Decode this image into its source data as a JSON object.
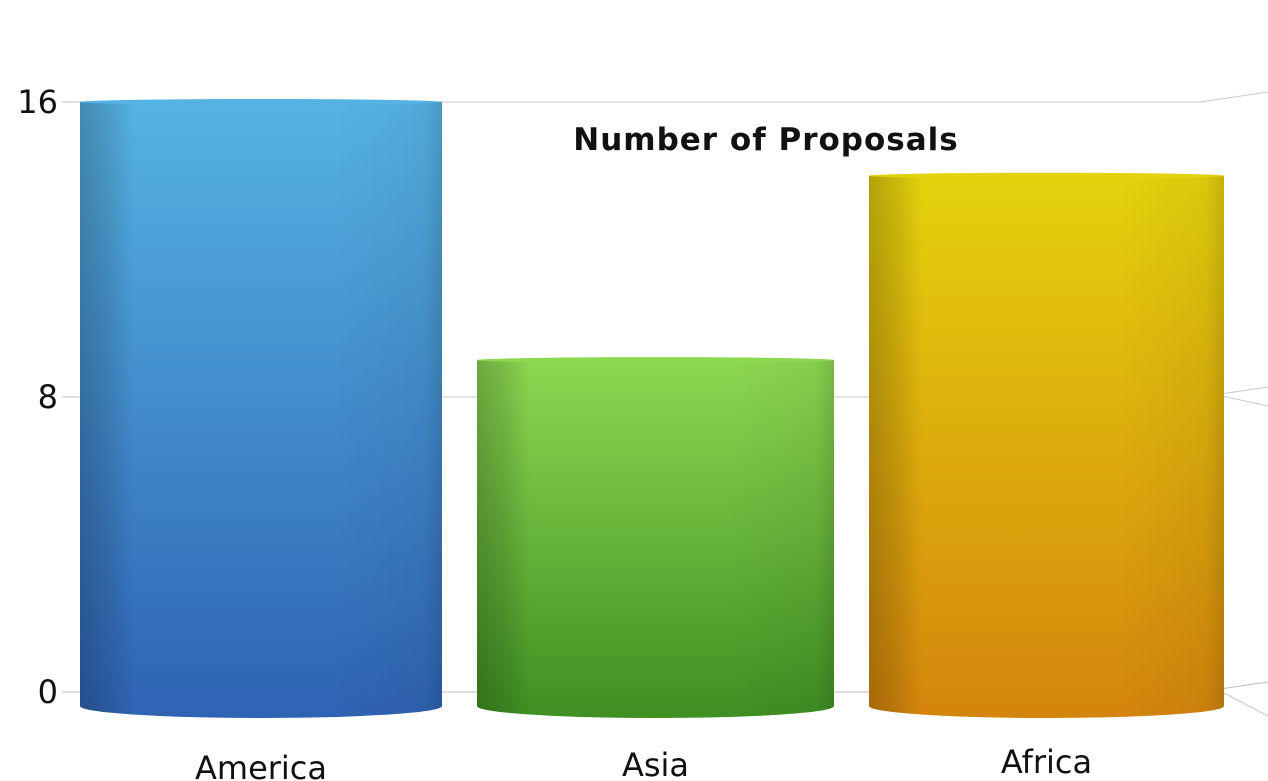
{
  "chart_data": {
    "type": "bar",
    "title": "Number of Proposals",
    "xlabel": "",
    "ylabel": "",
    "categories": [
      "America",
      "Asia",
      "Africa"
    ],
    "values": [
      16,
      9,
      14
    ],
    "ylim": [
      0,
      16
    ],
    "yticks": [
      0,
      8,
      16
    ],
    "grid": true,
    "legend": "none",
    "style": "3d-cylinder",
    "colors": [
      {
        "top": "#55b3e3",
        "bottom": "#2e63b3"
      },
      {
        "top": "#8dd851",
        "bottom": "#3f8f22"
      },
      {
        "top": "#e4d20c",
        "bottom": "#d4850c"
      }
    ]
  }
}
